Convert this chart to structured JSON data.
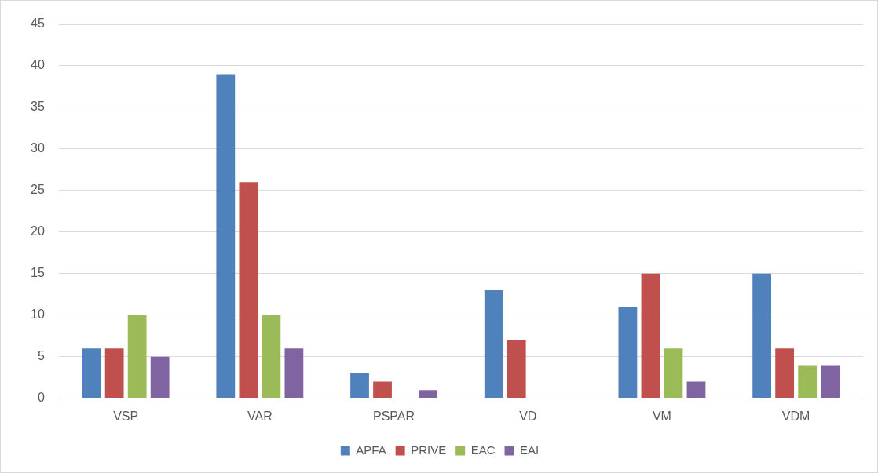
{
  "chart_data": {
    "type": "bar",
    "categories": [
      "VSP",
      "VAR",
      "PSPAR",
      "VD",
      "VM",
      "VDM"
    ],
    "series": [
      {
        "name": "APFA",
        "color": "#4f81bd",
        "values": [
          6,
          39,
          3,
          13,
          11,
          15
        ]
      },
      {
        "name": "PRIVE",
        "color": "#c0504d",
        "values": [
          6,
          26,
          2,
          7,
          15,
          6
        ]
      },
      {
        "name": "EAC",
        "color": "#9bbb59",
        "values": [
          10,
          10,
          0,
          0,
          6,
          4
        ]
      },
      {
        "name": "EAI",
        "color": "#8064a2",
        "values": [
          5,
          6,
          1,
          0,
          2,
          4
        ]
      }
    ],
    "ylim": [
      0,
      45
    ],
    "yticks": [
      0,
      5,
      10,
      15,
      20,
      25,
      30,
      35,
      40,
      45
    ],
    "grid": "y",
    "legend": "bottom"
  }
}
